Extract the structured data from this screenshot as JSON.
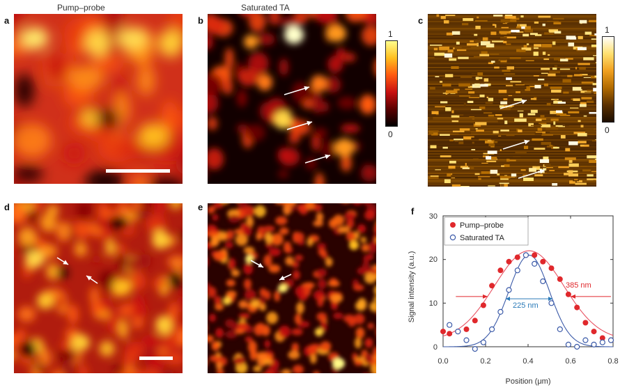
{
  "figure": {
    "column_titles": [
      "Pump–probe",
      "Saturated TA"
    ],
    "panel_labels": [
      "a",
      "b",
      "c",
      "d",
      "e",
      "f"
    ],
    "colorbar_b": {
      "max_label": "1",
      "min_label": "0"
    },
    "colorbar_c": {
      "max_label": "1",
      "min_label": "0"
    },
    "colormap_hot": [
      "#000000",
      "#5a0000",
      "#c81010",
      "#ff5a10",
      "#ffc020",
      "#ffff90",
      "#ffffff"
    ],
    "colormap_afm": [
      "#1a0c00",
      "#5a3000",
      "#b06a00",
      "#f0a020",
      "#ffe070",
      "#ffffff"
    ]
  },
  "chart_data": {
    "type": "scatter",
    "panel": "f",
    "xlabel": "Position (μm)",
    "ylabel": "Signal intensity (a.u.)",
    "xlim": [
      0,
      0.8
    ],
    "ylim": [
      0,
      30
    ],
    "xticks": [
      "0.0",
      "0.2",
      "0.4",
      "0.6",
      "0.8"
    ],
    "yticks": [
      "0",
      "10",
      "20",
      "30"
    ],
    "legend_position": "top-left",
    "series": [
      {
        "name": "Pump–probe",
        "marker": "filled-circle",
        "color": "#e0282c",
        "x": [
          0.0,
          0.03,
          0.07,
          0.11,
          0.15,
          0.19,
          0.23,
          0.27,
          0.31,
          0.35,
          0.39,
          0.43,
          0.47,
          0.51,
          0.55,
          0.59,
          0.63,
          0.67,
          0.71,
          0.75,
          0.79
        ],
        "y": [
          3.5,
          3.0,
          3.5,
          4.0,
          6.0,
          9.5,
          14.0,
          17.5,
          19.5,
          20.5,
          21.0,
          21.0,
          19.5,
          18.0,
          15.5,
          12.0,
          9.0,
          5.5,
          3.5,
          2.0,
          1.5
        ]
      },
      {
        "name": "Saturated TA",
        "marker": "open-circle",
        "color": "#3b5aa8",
        "x": [
          0.03,
          0.07,
          0.11,
          0.15,
          0.19,
          0.23,
          0.27,
          0.31,
          0.35,
          0.39,
          0.43,
          0.47,
          0.51,
          0.55,
          0.59,
          0.63,
          0.67,
          0.71,
          0.75,
          0.79
        ],
        "y": [
          5.0,
          3.5,
          1.5,
          -0.5,
          1.0,
          4.0,
          8.0,
          13.0,
          17.5,
          21.0,
          19.0,
          15.0,
          10.0,
          4.0,
          0.5,
          0.0,
          1.5,
          0.5,
          1.0,
          1.5
        ]
      },
      {
        "name": "",
        "style": "fit-line",
        "color": "#e85060",
        "center": 0.405,
        "fwhm": 0.385,
        "amplitude": 20.5,
        "offset": 1.5
      },
      {
        "name": "",
        "style": "fit-line",
        "color": "#3b5aa8",
        "center": 0.405,
        "fwhm": 0.225,
        "amplitude": 21.0,
        "offset": 0.0
      }
    ],
    "annotations": [
      {
        "text": "385 nm",
        "color": "#e0282c"
      },
      {
        "text": "225 nm",
        "color": "#2a7ab8"
      }
    ]
  }
}
